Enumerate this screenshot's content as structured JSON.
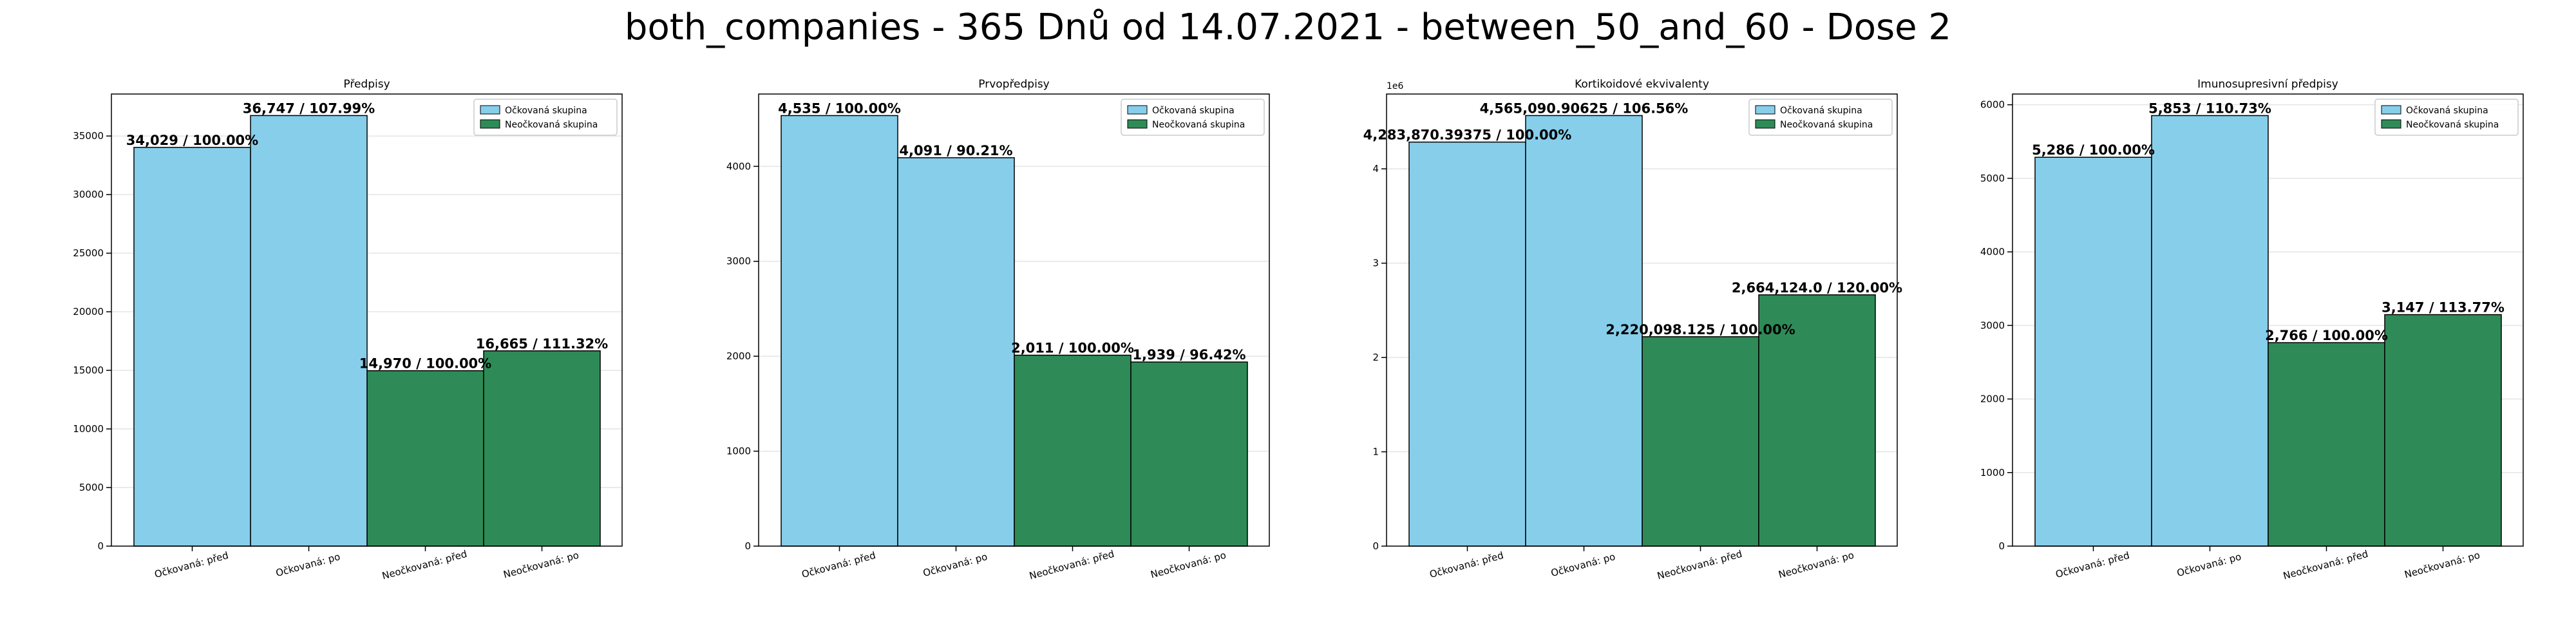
{
  "suptitle": "both_companies - 365 Dnů od 14.07.2021 - between_50_and_60 - Dose 2",
  "colors": {
    "vaccinated": "#87CEEB",
    "unvaccinated": "#2E8B57"
  },
  "chart_data": [
    {
      "type": "bar",
      "title": "Předpisy",
      "categories": [
        "Očkovaná: před",
        "Očkovaná: po",
        "Neočkovaná: před",
        "Neočkovaná: po"
      ],
      "values": [
        34029,
        36747,
        14970,
        16665
      ],
      "bar_labels": [
        "34,029 / 100.00%",
        "36,747 / 107.99%",
        "14,970 / 100.00%",
        "16,665 / 111.32%"
      ],
      "bar_groups": [
        0,
        0,
        1,
        1
      ],
      "legend": [
        "Očkovaná skupina",
        "Neočkovaná skupina"
      ],
      "legend_position": "top-right",
      "ylim": [
        0,
        38584
      ],
      "yticks": [
        0,
        5000,
        10000,
        15000,
        20000,
        25000,
        30000,
        35000
      ],
      "ytick_labels": [
        "0",
        "5000",
        "10000",
        "15000",
        "20000",
        "25000",
        "30000",
        "35000"
      ],
      "y_offset_label": "",
      "grid": true
    },
    {
      "type": "bar",
      "title": "Prvopředpisy",
      "categories": [
        "Očkovaná: před",
        "Očkovaná: po",
        "Neočkovaná: před",
        "Neočkovaná: po"
      ],
      "values": [
        4535,
        4091,
        2011,
        1939
      ],
      "bar_labels": [
        "4,535 / 100.00%",
        "4,091 / 90.21%",
        "2,011 / 100.00%",
        "1,939 / 96.42%"
      ],
      "bar_groups": [
        0,
        0,
        1,
        1
      ],
      "legend": [
        "Očkovaná skupina",
        "Neočkovaná skupina"
      ],
      "legend_position": "top-right",
      "ylim": [
        0,
        4762
      ],
      "yticks": [
        0,
        1000,
        2000,
        3000,
        4000
      ],
      "ytick_labels": [
        "0",
        "1000",
        "2000",
        "3000",
        "4000"
      ],
      "y_offset_label": "",
      "grid": true
    },
    {
      "type": "bar",
      "title": "Kortikoidové ekvivalenty",
      "categories": [
        "Očkovaná: před",
        "Očkovaná: po",
        "Neočkovaná: před",
        "Neočkovaná: po"
      ],
      "values": [
        4283870.39375,
        4565090.90625,
        2220098.125,
        2664124.0
      ],
      "bar_labels": [
        "4,283,870.39375 / 100.00%",
        "4,565,090.90625 / 106.56%",
        "2,220,098.125 / 100.00%",
        "2,664,124.0 / 120.00%"
      ],
      "bar_groups": [
        0,
        0,
        1,
        1
      ],
      "legend": [
        "Očkovaná skupina",
        "Neočkovaná skupina"
      ],
      "legend_position": "top-right",
      "ylim": [
        0,
        4793345
      ],
      "yticks": [
        0,
        1000000,
        2000000,
        3000000,
        4000000
      ],
      "ytick_labels": [
        "0",
        "1",
        "2",
        "3",
        "4"
      ],
      "y_offset_label": "1e6",
      "grid": true
    },
    {
      "type": "bar",
      "title": "Imunosupresivní předpisy",
      "categories": [
        "Očkovaná: před",
        "Očkovaná: po",
        "Neočkovaná: před",
        "Neočkovaná: po"
      ],
      "values": [
        5286,
        5853,
        2766,
        3147
      ],
      "bar_labels": [
        "5,286 / 100.00%",
        "5,853 / 110.73%",
        "2,766 / 100.00%",
        "3,147 / 113.77%"
      ],
      "bar_groups": [
        0,
        0,
        1,
        1
      ],
      "legend": [
        "Očkovaná skupina",
        "Neočkovaná skupina"
      ],
      "legend_position": "top-right",
      "ylim": [
        0,
        6146
      ],
      "yticks": [
        0,
        1000,
        2000,
        3000,
        4000,
        5000,
        6000
      ],
      "ytick_labels": [
        "0",
        "1000",
        "2000",
        "3000",
        "4000",
        "5000",
        "6000"
      ],
      "y_offset_label": "",
      "grid": true
    }
  ]
}
